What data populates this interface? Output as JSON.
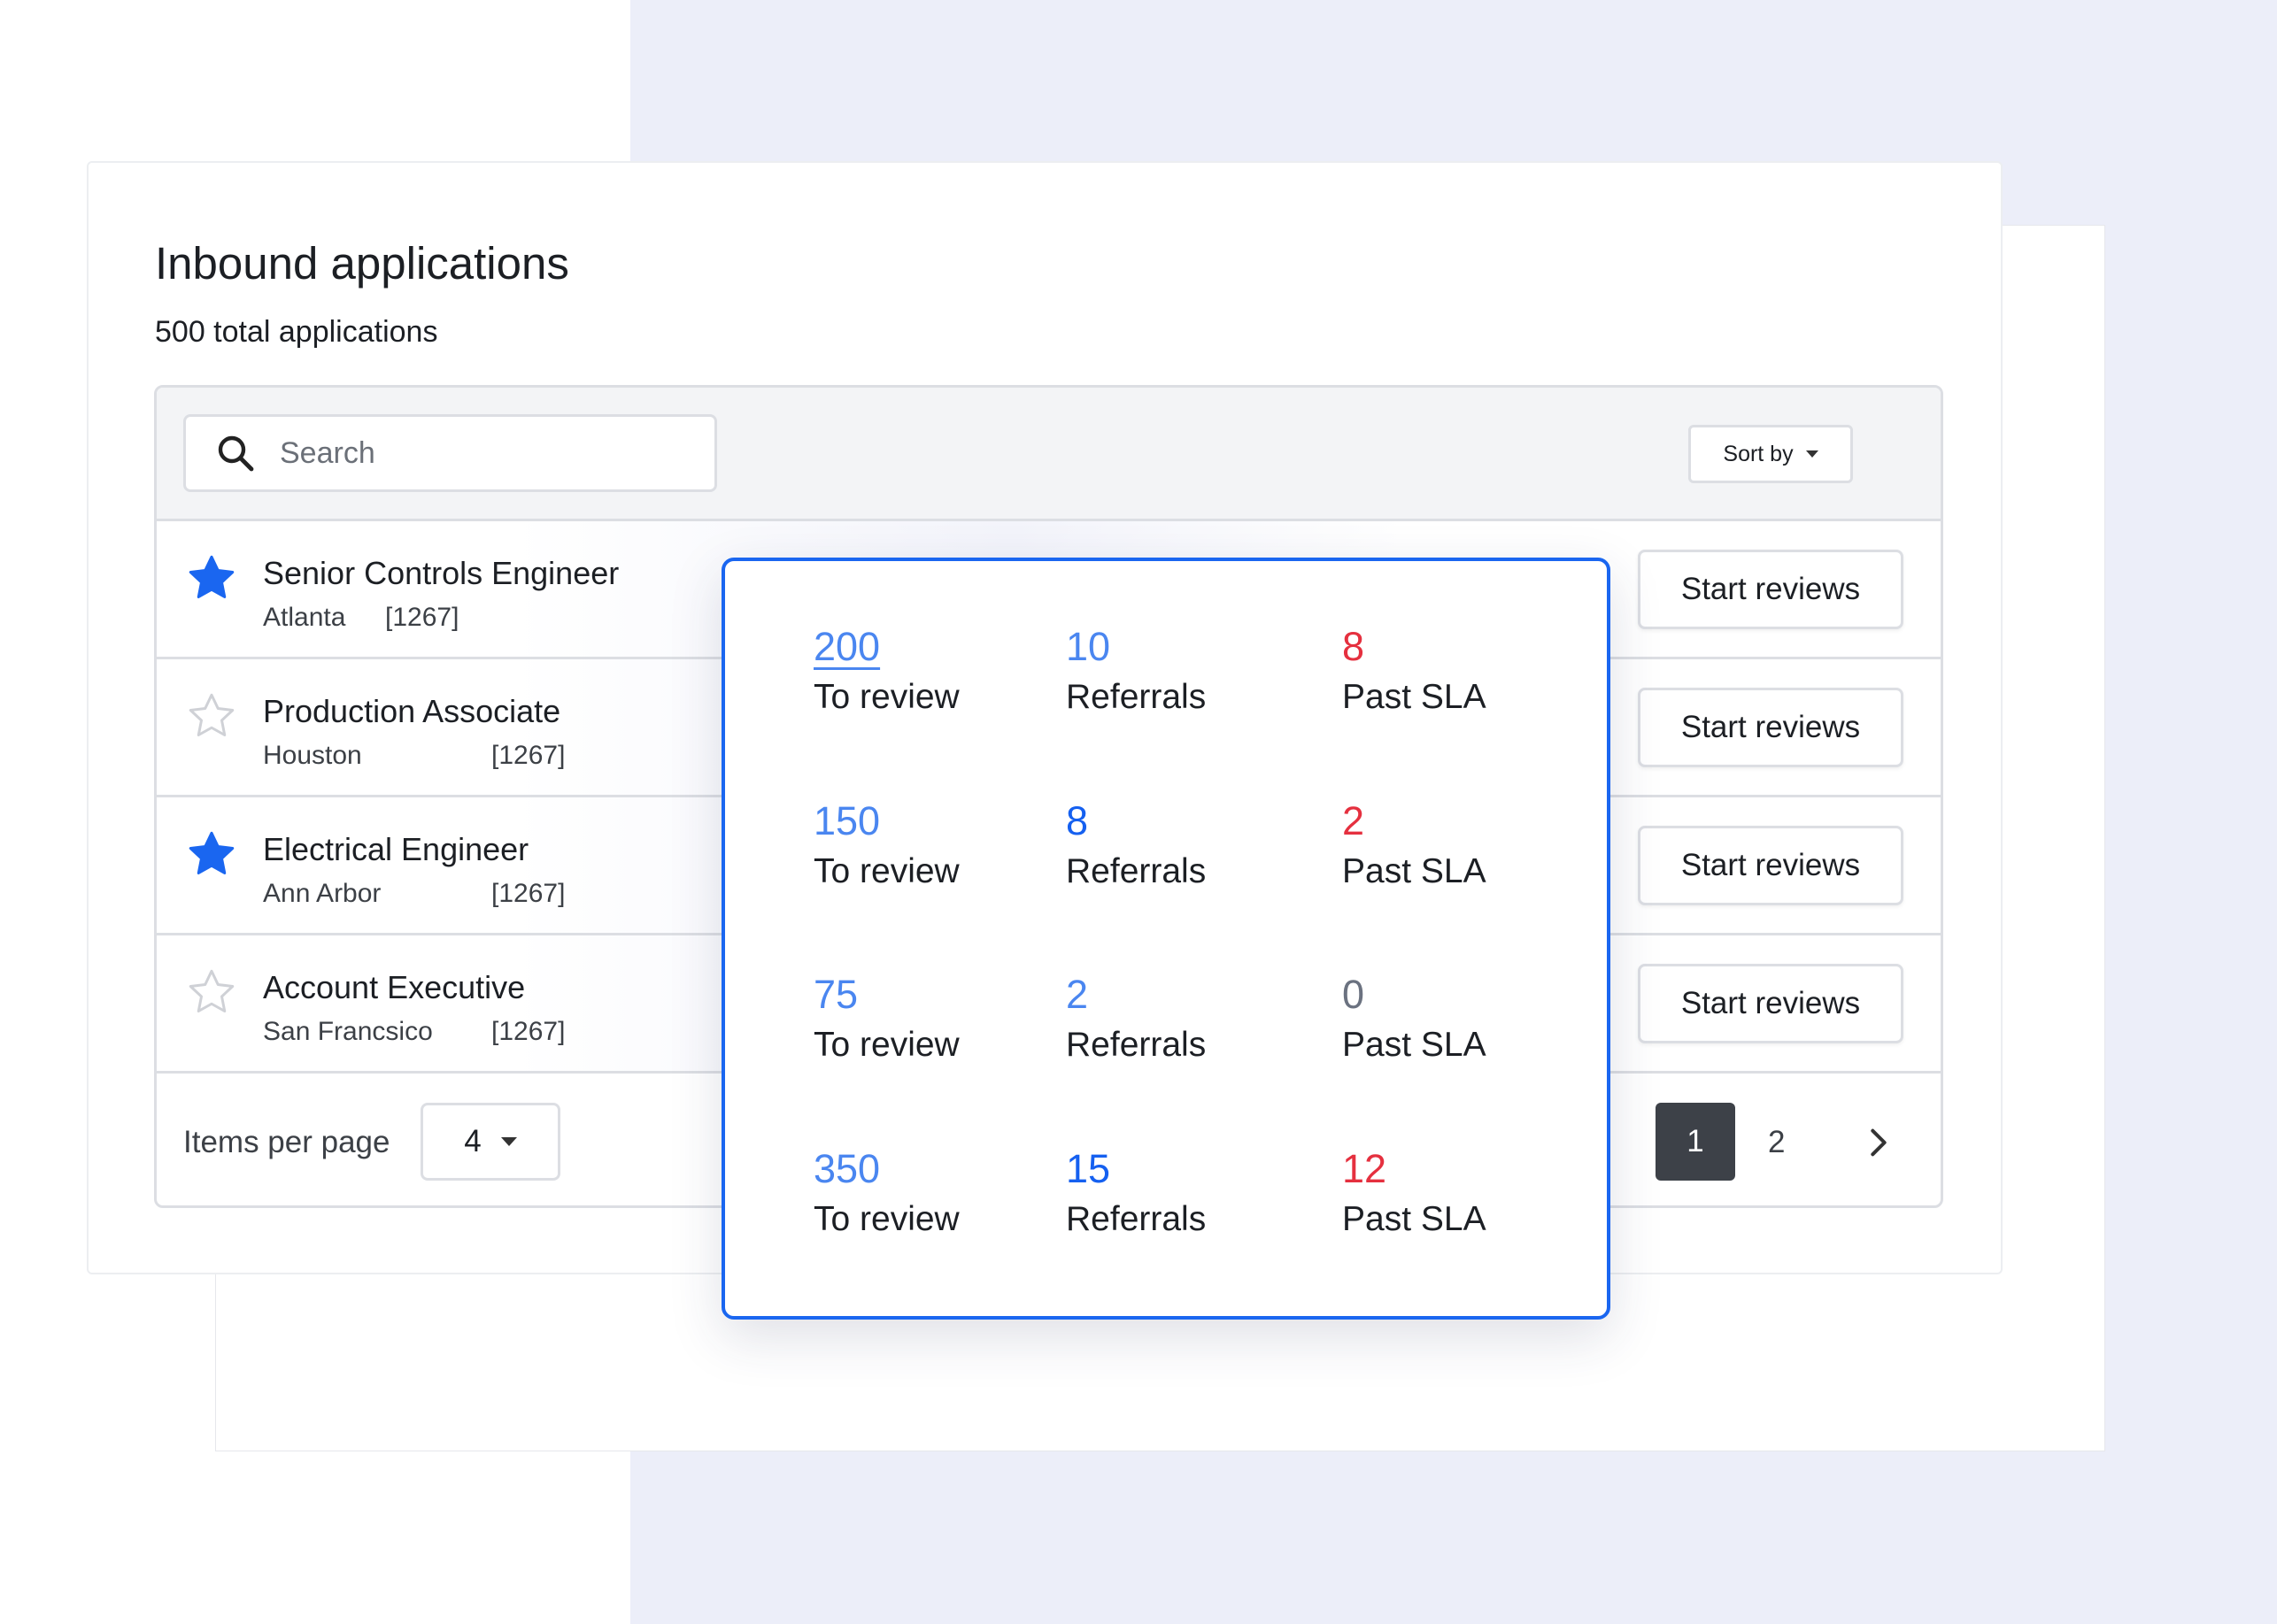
{
  "header": {
    "title": "Inbound applications",
    "subtitle": "500 total applications"
  },
  "toolbar": {
    "search_placeholder": "Search",
    "sort_label": "Sort by",
    "search_icon": "search-icon",
    "sort_icon": "caret-down-icon"
  },
  "rows": [
    {
      "title": "Senior Controls Engineer",
      "location": "Atlanta",
      "code": "[1267]",
      "starred": true,
      "action": "Start reviews"
    },
    {
      "title": "Production Associate",
      "location": "Houston",
      "code": "[1267]",
      "starred": false,
      "action": "Start reviews"
    },
    {
      "title": "Electrical Engineer",
      "location": "Ann Arbor",
      "code": "[1267]",
      "starred": true,
      "action": "Start reviews"
    },
    {
      "title": "Account Executive",
      "location": "San Francsico",
      "code": "[1267]",
      "starred": false,
      "action": "Start reviews"
    }
  ],
  "footer": {
    "items_per_page_label": "Items per page",
    "items_per_page_value": "4",
    "pages": [
      "1",
      "2"
    ],
    "current_page": "1",
    "next_icon": "chevron-right-icon"
  },
  "popup": {
    "stats": [
      [
        {
          "value": "200",
          "label": "To review",
          "color": "#4a86f0",
          "underline": true
        },
        {
          "value": "10",
          "label": "Referrals",
          "color": "#4a86f0"
        },
        {
          "value": "8",
          "label": "Past SLA",
          "color": "#e5303f"
        }
      ],
      [
        {
          "value": "150",
          "label": "To review",
          "color": "#4a86f0"
        },
        {
          "value": "8",
          "label": "Referrals",
          "color": "#1560f0"
        },
        {
          "value": "2",
          "label": "Past SLA",
          "color": "#e5303f"
        }
      ],
      [
        {
          "value": "75",
          "label": "To review",
          "color": "#4a86f0"
        },
        {
          "value": "2",
          "label": "Referrals",
          "color": "#4a86f0"
        },
        {
          "value": "0",
          "label": "Past SLA",
          "color": "#6b7280"
        }
      ],
      [
        {
          "value": "350",
          "label": "To review",
          "color": "#4a86f0"
        },
        {
          "value": "15",
          "label": "Referrals",
          "color": "#1560f0"
        },
        {
          "value": "12",
          "label": "Past SLA",
          "color": "#e5303f"
        }
      ]
    ]
  },
  "colors": {
    "accent": "#1a66f0",
    "star_filled": "#1a66f0",
    "star_empty": "#cfd1d6",
    "danger": "#e5303f",
    "page_active": "#3d4148"
  }
}
